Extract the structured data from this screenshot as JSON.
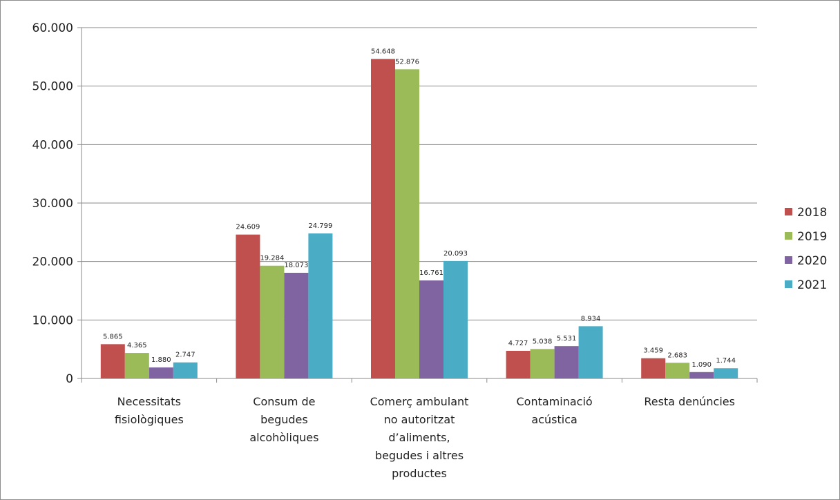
{
  "chart_data": {
    "type": "bar",
    "title": "",
    "xlabel": "",
    "ylabel": "",
    "ylim": [
      0,
      60000
    ],
    "y_ticks": [
      0,
      10000,
      20000,
      30000,
      40000,
      50000,
      60000
    ],
    "y_tick_labels": [
      "0",
      "10.000",
      "20.000",
      "30.000",
      "40.000",
      "50.000",
      "60.000"
    ],
    "grid": true,
    "legend_position": "right",
    "categories": [
      [
        "Necessitats",
        "fisiològiques"
      ],
      [
        "Consum de",
        "begudes",
        "alcohòliques"
      ],
      [
        "Comerç ambulant",
        "no autoritzat",
        "d’aliments,",
        "begudes i altres",
        "productes"
      ],
      [
        "Contaminació",
        "acústica"
      ],
      [
        "Resta denúncies"
      ]
    ],
    "series": [
      {
        "name": "2018",
        "color": "#c0504d",
        "values": [
          5865,
          24609,
          54648,
          4727,
          3459
        ],
        "labels": [
          "5.865",
          "24.609",
          "54.648",
          "4.727",
          "3.459"
        ]
      },
      {
        "name": "2019",
        "color": "#9bbb59",
        "values": [
          4365,
          19284,
          52876,
          5038,
          2683
        ],
        "labels": [
          "4.365",
          "19.284",
          "52.876",
          "5.038",
          "2.683"
        ]
      },
      {
        "name": "2020",
        "color": "#8064a2",
        "values": [
          1880,
          18073,
          16761,
          5531,
          1090
        ],
        "labels": [
          "1.880",
          "18.073",
          "16.761",
          "5.531",
          "1.090"
        ]
      },
      {
        "name": "2021",
        "color": "#4bacc6",
        "values": [
          2747,
          24799,
          20093,
          8934,
          1744
        ],
        "labels": [
          "2.747",
          "24.799",
          "20.093",
          "8.934",
          "1.744"
        ]
      }
    ]
  }
}
